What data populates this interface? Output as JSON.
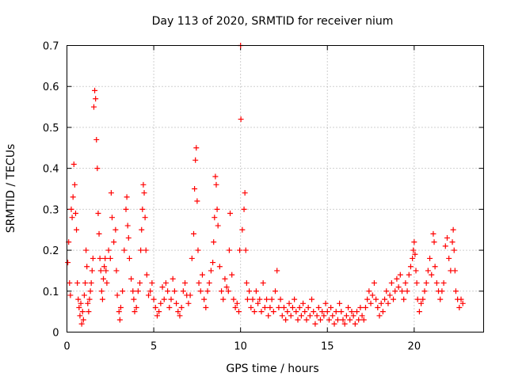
{
  "chart_data": {
    "type": "scatter",
    "title": "Day 113 of 2020, SRMTID for receiver nium",
    "xlabel": "GPS time / hours",
    "ylabel": "SRMTID / TECUs",
    "xlim": [
      0,
      24
    ],
    "ylim": [
      0,
      0.7
    ],
    "xticks": [
      0,
      5,
      10,
      15,
      20
    ],
    "xtick_labels": [
      "0",
      "5",
      "10",
      "15",
      "20"
    ],
    "yticks": [
      0,
      0.1,
      0.2,
      0.3,
      0.4,
      0.5,
      0.6,
      0.7
    ],
    "ytick_labels": [
      "0",
      "0.1",
      "0.2",
      "0.3",
      "0.4",
      "0.5",
      "0.6",
      "0.7"
    ],
    "grid": true,
    "marker": "+",
    "series": [
      {
        "name": "SRMTID",
        "color": "#ff0000",
        "points": [
          [
            0.05,
            0.17
          ],
          [
            0.1,
            0.22
          ],
          [
            0.15,
            0.12
          ],
          [
            0.2,
            0.09
          ],
          [
            0.25,
            0.3
          ],
          [
            0.3,
            0.28
          ],
          [
            0.35,
            0.33
          ],
          [
            0.4,
            0.41
          ],
          [
            0.45,
            0.36
          ],
          [
            0.5,
            0.29
          ],
          [
            0.55,
            0.25
          ],
          [
            0.6,
            0.12
          ],
          [
            0.65,
            0.08
          ],
          [
            0.7,
            0.06
          ],
          [
            0.75,
            0.04
          ],
          [
            0.8,
            0.07
          ],
          [
            0.85,
            0.02
          ],
          [
            0.9,
            0.05
          ],
          [
            0.95,
            0.03
          ],
          [
            1.0,
            0.09
          ],
          [
            1.05,
            0.12
          ],
          [
            1.1,
            0.2
          ],
          [
            1.15,
            0.16
          ],
          [
            1.2,
            0.07
          ],
          [
            1.25,
            0.05
          ],
          [
            1.3,
            0.08
          ],
          [
            1.35,
            0.1
          ],
          [
            1.4,
            0.12
          ],
          [
            1.45,
            0.15
          ],
          [
            1.5,
            0.18
          ],
          [
            1.55,
            0.55
          ],
          [
            1.6,
            0.59
          ],
          [
            1.65,
            0.57
          ],
          [
            1.7,
            0.47
          ],
          [
            1.75,
            0.4
          ],
          [
            1.8,
            0.29
          ],
          [
            1.85,
            0.24
          ],
          [
            1.9,
            0.18
          ],
          [
            1.95,
            0.15
          ],
          [
            2.0,
            0.1
          ],
          [
            2.05,
            0.08
          ],
          [
            2.1,
            0.13
          ],
          [
            2.15,
            0.16
          ],
          [
            2.2,
            0.18
          ],
          [
            2.25,
            0.15
          ],
          [
            2.3,
            0.12
          ],
          [
            2.4,
            0.2
          ],
          [
            2.5,
            0.18
          ],
          [
            2.55,
            0.34
          ],
          [
            2.6,
            0.28
          ],
          [
            2.7,
            0.22
          ],
          [
            2.8,
            0.25
          ],
          [
            2.85,
            0.15
          ],
          [
            2.9,
            0.09
          ],
          [
            3.0,
            0.05
          ],
          [
            3.05,
            0.03
          ],
          [
            3.1,
            0.06
          ],
          [
            3.2,
            0.1
          ],
          [
            3.3,
            0.2
          ],
          [
            3.4,
            0.3
          ],
          [
            3.45,
            0.33
          ],
          [
            3.5,
            0.26
          ],
          [
            3.55,
            0.23
          ],
          [
            3.6,
            0.18
          ],
          [
            3.7,
            0.13
          ],
          [
            3.8,
            0.1
          ],
          [
            3.85,
            0.08
          ],
          [
            3.9,
            0.05
          ],
          [
            4.0,
            0.06
          ],
          [
            4.1,
            0.1
          ],
          [
            4.2,
            0.12
          ],
          [
            4.25,
            0.2
          ],
          [
            4.3,
            0.25
          ],
          [
            4.35,
            0.3
          ],
          [
            4.4,
            0.36
          ],
          [
            4.45,
            0.34
          ],
          [
            4.5,
            0.28
          ],
          [
            4.55,
            0.2
          ],
          [
            4.6,
            0.14
          ],
          [
            4.7,
            0.09
          ],
          [
            4.8,
            0.1
          ],
          [
            4.9,
            0.12
          ],
          [
            5.0,
            0.08
          ],
          [
            5.1,
            0.06
          ],
          [
            5.2,
            0.04
          ],
          [
            5.3,
            0.05
          ],
          [
            5.4,
            0.07
          ],
          [
            5.5,
            0.11
          ],
          [
            5.6,
            0.08
          ],
          [
            5.7,
            0.12
          ],
          [
            5.8,
            0.1
          ],
          [
            5.9,
            0.06
          ],
          [
            6.0,
            0.08
          ],
          [
            6.1,
            0.13
          ],
          [
            6.2,
            0.1
          ],
          [
            6.3,
            0.07
          ],
          [
            6.4,
            0.05
          ],
          [
            6.5,
            0.04
          ],
          [
            6.6,
            0.06
          ],
          [
            6.7,
            0.1
          ],
          [
            6.8,
            0.12
          ],
          [
            6.9,
            0.09
          ],
          [
            7.0,
            0.07
          ],
          [
            7.1,
            0.09
          ],
          [
            7.2,
            0.18
          ],
          [
            7.3,
            0.24
          ],
          [
            7.35,
            0.35
          ],
          [
            7.4,
            0.42
          ],
          [
            7.45,
            0.45
          ],
          [
            7.5,
            0.32
          ],
          [
            7.55,
            0.2
          ],
          [
            7.6,
            0.12
          ],
          [
            7.7,
            0.1
          ],
          [
            7.8,
            0.14
          ],
          [
            7.9,
            0.08
          ],
          [
            8.0,
            0.06
          ],
          [
            8.1,
            0.1
          ],
          [
            8.2,
            0.12
          ],
          [
            8.3,
            0.15
          ],
          [
            8.4,
            0.17
          ],
          [
            8.45,
            0.22
          ],
          [
            8.5,
            0.28
          ],
          [
            8.55,
            0.38
          ],
          [
            8.6,
            0.36
          ],
          [
            8.65,
            0.3
          ],
          [
            8.7,
            0.26
          ],
          [
            8.8,
            0.16
          ],
          [
            8.9,
            0.1
          ],
          [
            9.0,
            0.08
          ],
          [
            9.1,
            0.13
          ],
          [
            9.2,
            0.11
          ],
          [
            9.3,
            0.1
          ],
          [
            9.35,
            0.2
          ],
          [
            9.4,
            0.29
          ],
          [
            9.5,
            0.14
          ],
          [
            9.6,
            0.08
          ],
          [
            9.7,
            0.06
          ],
          [
            9.8,
            0.07
          ],
          [
            9.9,
            0.05
          ],
          [
            9.95,
            0.2
          ],
          [
            10.0,
            0.7
          ],
          [
            10.02,
            0.52
          ],
          [
            10.1,
            0.25
          ],
          [
            10.2,
            0.3
          ],
          [
            10.25,
            0.34
          ],
          [
            10.3,
            0.2
          ],
          [
            10.35,
            0.12
          ],
          [
            10.4,
            0.08
          ],
          [
            10.5,
            0.1
          ],
          [
            10.6,
            0.06
          ],
          [
            10.7,
            0.08
          ],
          [
            10.8,
            0.05
          ],
          [
            10.9,
            0.1
          ],
          [
            11.0,
            0.07
          ],
          [
            11.1,
            0.08
          ],
          [
            11.2,
            0.05
          ],
          [
            11.3,
            0.12
          ],
          [
            11.4,
            0.06
          ],
          [
            11.5,
            0.08
          ],
          [
            11.6,
            0.04
          ],
          [
            11.7,
            0.06
          ],
          [
            11.8,
            0.08
          ],
          [
            11.9,
            0.05
          ],
          [
            12.0,
            0.1
          ],
          [
            12.1,
            0.15
          ],
          [
            12.2,
            0.06
          ],
          [
            12.3,
            0.08
          ],
          [
            12.4,
            0.04
          ],
          [
            12.5,
            0.06
          ],
          [
            12.6,
            0.03
          ],
          [
            12.7,
            0.05
          ],
          [
            12.8,
            0.07
          ],
          [
            12.9,
            0.04
          ],
          [
            13.0,
            0.06
          ],
          [
            13.1,
            0.08
          ],
          [
            13.2,
            0.05
          ],
          [
            13.3,
            0.03
          ],
          [
            13.4,
            0.06
          ],
          [
            13.5,
            0.04
          ],
          [
            13.6,
            0.07
          ],
          [
            13.7,
            0.05
          ],
          [
            13.8,
            0.03
          ],
          [
            13.9,
            0.06
          ],
          [
            14.0,
            0.04
          ],
          [
            14.1,
            0.08
          ],
          [
            14.2,
            0.05
          ],
          [
            14.3,
            0.02
          ],
          [
            14.4,
            0.04
          ],
          [
            14.5,
            0.06
          ],
          [
            14.6,
            0.03
          ],
          [
            14.7,
            0.05
          ],
          [
            14.8,
            0.04
          ],
          [
            14.9,
            0.07
          ],
          [
            15.0,
            0.05
          ],
          [
            15.1,
            0.03
          ],
          [
            15.2,
            0.06
          ],
          [
            15.3,
            0.04
          ],
          [
            15.4,
            0.02
          ],
          [
            15.5,
            0.05
          ],
          [
            15.6,
            0.03
          ],
          [
            15.7,
            0.07
          ],
          [
            15.8,
            0.05
          ],
          [
            15.9,
            0.03
          ],
          [
            16.0,
            0.02
          ],
          [
            16.1,
            0.04
          ],
          [
            16.2,
            0.06
          ],
          [
            16.3,
            0.03
          ],
          [
            16.4,
            0.05
          ],
          [
            16.5,
            0.04
          ],
          [
            16.6,
            0.02
          ],
          [
            16.7,
            0.05
          ],
          [
            16.8,
            0.03
          ],
          [
            16.9,
            0.06
          ],
          [
            17.0,
            0.04
          ],
          [
            17.1,
            0.03
          ],
          [
            17.2,
            0.06
          ],
          [
            17.3,
            0.08
          ],
          [
            17.4,
            0.1
          ],
          [
            17.5,
            0.07
          ],
          [
            17.6,
            0.09
          ],
          [
            17.7,
            0.12
          ],
          [
            17.8,
            0.08
          ],
          [
            17.9,
            0.06
          ],
          [
            18.0,
            0.04
          ],
          [
            18.1,
            0.07
          ],
          [
            18.2,
            0.05
          ],
          [
            18.3,
            0.08
          ],
          [
            18.4,
            0.1
          ],
          [
            18.5,
            0.07
          ],
          [
            18.6,
            0.09
          ],
          [
            18.7,
            0.12
          ],
          [
            18.8,
            0.08
          ],
          [
            18.9,
            0.1
          ],
          [
            19.0,
            0.13
          ],
          [
            19.1,
            0.11
          ],
          [
            19.2,
            0.14
          ],
          [
            19.3,
            0.1
          ],
          [
            19.4,
            0.08
          ],
          [
            19.5,
            0.12
          ],
          [
            19.6,
            0.1
          ],
          [
            19.7,
            0.14
          ],
          [
            19.8,
            0.16
          ],
          [
            19.9,
            0.18
          ],
          [
            19.95,
            0.2
          ],
          [
            20.0,
            0.22
          ],
          [
            20.05,
            0.19
          ],
          [
            20.1,
            0.15
          ],
          [
            20.15,
            0.12
          ],
          [
            20.2,
            0.08
          ],
          [
            20.3,
            0.05
          ],
          [
            20.4,
            0.07
          ],
          [
            20.5,
            0.08
          ],
          [
            20.6,
            0.1
          ],
          [
            20.7,
            0.12
          ],
          [
            20.8,
            0.15
          ],
          [
            20.9,
            0.18
          ],
          [
            21.0,
            0.14
          ],
          [
            21.1,
            0.24
          ],
          [
            21.15,
            0.22
          ],
          [
            21.2,
            0.16
          ],
          [
            21.3,
            0.12
          ],
          [
            21.4,
            0.1
          ],
          [
            21.5,
            0.08
          ],
          [
            21.6,
            0.1
          ],
          [
            21.7,
            0.12
          ],
          [
            21.8,
            0.21
          ],
          [
            21.9,
            0.23
          ],
          [
            22.0,
            0.18
          ],
          [
            22.1,
            0.15
          ],
          [
            22.2,
            0.22
          ],
          [
            22.25,
            0.25
          ],
          [
            22.3,
            0.2
          ],
          [
            22.35,
            0.15
          ],
          [
            22.4,
            0.1
          ],
          [
            22.5,
            0.08
          ],
          [
            22.6,
            0.06
          ],
          [
            22.7,
            0.08
          ],
          [
            22.8,
            0.07
          ]
        ]
      }
    ]
  }
}
